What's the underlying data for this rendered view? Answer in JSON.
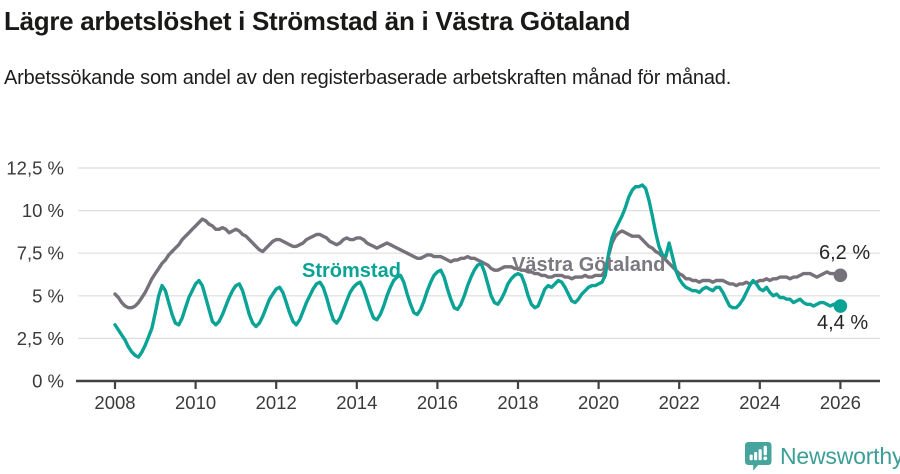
{
  "title": "Lägre arbetslöshet i Strömstad än i Västra Götaland",
  "subtitle": "Arbetssökande som andel av den registerbaserade arbetskraften månad för månad.",
  "footer": {
    "brand": "Newsworthy",
    "brand_color": "#3d9e97",
    "logo_icon": "newsworthy-speech-bubble-barchart-icon"
  },
  "chart_data": {
    "type": "line",
    "title": "Lägre arbetslöshet i Strömstad än i Västra Götaland",
    "subtitle": "Arbetssökande som andel av den registerbaserade arbetskraften månad för månad.",
    "x_unit": "month",
    "x_start": "2008-01",
    "x_end": "2026-01",
    "xlim": [
      2008,
      2026
    ],
    "ylim": [
      0,
      12.5
    ],
    "grid": true,
    "grid_color": "#dedede",
    "axis_color": "#414042",
    "legend_position": "inline-labels",
    "x_ticks": [
      "2008",
      "2010",
      "2012",
      "2014",
      "2016",
      "2018",
      "2020",
      "2022",
      "2024",
      "2026"
    ],
    "y_ticks": [
      {
        "label": "0 %",
        "value": 0
      },
      {
        "label": "2,5 %",
        "value": 2.5
      },
      {
        "label": "5 %",
        "value": 5
      },
      {
        "label": "7,5 %",
        "value": 7.5
      },
      {
        "label": "10 %",
        "value": 10
      },
      {
        "label": "12,5 %",
        "value": 12.5
      }
    ],
    "series": [
      {
        "id": "vastra-gotaland",
        "name": "Västra Götaland",
        "color": "#76717a",
        "end_label": "6,2 %",
        "end_value": 6.2,
        "values": [
          5.1,
          4.9,
          4.6,
          4.4,
          4.3,
          4.3,
          4.4,
          4.6,
          4.9,
          5.2,
          5.6,
          6.0,
          6.3,
          6.6,
          6.9,
          7.1,
          7.4,
          7.6,
          7.8,
          8.0,
          8.3,
          8.5,
          8.7,
          8.9,
          9.1,
          9.3,
          9.5,
          9.4,
          9.2,
          9.1,
          8.9,
          8.9,
          9.0,
          8.9,
          8.7,
          8.8,
          8.9,
          8.8,
          8.6,
          8.5,
          8.3,
          8.1,
          7.9,
          7.7,
          7.6,
          7.8,
          8.0,
          8.2,
          8.3,
          8.3,
          8.2,
          8.1,
          8.0,
          7.9,
          7.9,
          8.0,
          8.1,
          8.3,
          8.4,
          8.5,
          8.6,
          8.6,
          8.5,
          8.4,
          8.2,
          8.1,
          8.0,
          8.1,
          8.3,
          8.4,
          8.3,
          8.3,
          8.4,
          8.4,
          8.3,
          8.1,
          8.0,
          7.9,
          7.8,
          7.9,
          8.0,
          8.1,
          8.0,
          7.9,
          7.8,
          7.7,
          7.6,
          7.5,
          7.4,
          7.3,
          7.2,
          7.2,
          7.3,
          7.4,
          7.4,
          7.3,
          7.3,
          7.3,
          7.2,
          7.1,
          7.0,
          7.1,
          7.1,
          7.2,
          7.2,
          7.3,
          7.2,
          7.2,
          7.1,
          7.0,
          6.9,
          6.8,
          6.6,
          6.5,
          6.5,
          6.6,
          6.7,
          6.7,
          6.7,
          6.6,
          6.6,
          6.5,
          6.5,
          6.4,
          6.4,
          6.3,
          6.3,
          6.2,
          6.2,
          6.1,
          6.1,
          6.2,
          6.2,
          6.2,
          6.1,
          6.1,
          6.0,
          6.1,
          6.1,
          6.1,
          6.2,
          6.1,
          6.1,
          6.2,
          6.2,
          6.2,
          6.5,
          7.4,
          8.1,
          8.5,
          8.7,
          8.8,
          8.7,
          8.6,
          8.5,
          8.5,
          8.5,
          8.3,
          8.1,
          7.9,
          7.8,
          7.6,
          7.5,
          7.3,
          7.1,
          6.9,
          6.7,
          6.5,
          6.3,
          6.2,
          6.0,
          6.0,
          5.9,
          5.9,
          5.8,
          5.9,
          5.9,
          5.9,
          5.8,
          5.9,
          5.9,
          5.9,
          5.8,
          5.7,
          5.7,
          5.6,
          5.7,
          5.7,
          5.8,
          5.7,
          5.8,
          5.8,
          5.9,
          5.9,
          6.0,
          5.9,
          6.0,
          6.0,
          6.1,
          6.1,
          6.1,
          6.0,
          6.1,
          6.1,
          6.2,
          6.3,
          6.3,
          6.3,
          6.2,
          6.1,
          6.2,
          6.3,
          6.4,
          6.3,
          6.3,
          6.2,
          6.2
        ]
      },
      {
        "id": "stromstad",
        "name": "Strömstad",
        "color": "#0ba396",
        "end_label": "4,4 %",
        "end_value": 4.4,
        "values": [
          3.3,
          3.0,
          2.7,
          2.4,
          2.0,
          1.7,
          1.5,
          1.4,
          1.7,
          2.1,
          2.6,
          3.1,
          4.0,
          5.0,
          5.6,
          5.3,
          4.6,
          3.9,
          3.4,
          3.3,
          3.7,
          4.3,
          4.9,
          5.3,
          5.7,
          5.9,
          5.6,
          4.9,
          4.2,
          3.5,
          3.3,
          3.5,
          3.9,
          4.4,
          4.9,
          5.3,
          5.6,
          5.7,
          5.3,
          4.6,
          3.9,
          3.4,
          3.2,
          3.4,
          3.8,
          4.3,
          4.8,
          5.1,
          5.4,
          5.5,
          5.2,
          4.6,
          4.0,
          3.5,
          3.3,
          3.6,
          4.1,
          4.6,
          5.0,
          5.4,
          5.7,
          5.8,
          5.5,
          4.9,
          4.2,
          3.6,
          3.4,
          3.7,
          4.2,
          4.7,
          5.2,
          5.5,
          5.7,
          5.8,
          5.4,
          4.8,
          4.2,
          3.7,
          3.6,
          3.9,
          4.4,
          5.0,
          5.5,
          5.9,
          6.1,
          6.2,
          5.8,
          5.1,
          4.5,
          4.0,
          3.9,
          4.2,
          4.7,
          5.3,
          5.8,
          6.2,
          6.4,
          6.5,
          6.1,
          5.4,
          4.8,
          4.3,
          4.2,
          4.5,
          5.0,
          5.6,
          6.1,
          6.5,
          6.8,
          6.9,
          6.4,
          5.7,
          5.0,
          4.6,
          4.5,
          4.8,
          5.2,
          5.7,
          6.0,
          6.2,
          6.3,
          6.2,
          5.7,
          5.0,
          4.5,
          4.3,
          4.4,
          4.9,
          5.4,
          5.6,
          5.5,
          5.7,
          5.9,
          5.8,
          5.5,
          5.1,
          4.7,
          4.6,
          4.8,
          5.1,
          5.3,
          5.5,
          5.6,
          5.6,
          5.7,
          5.8,
          6.2,
          7.5,
          8.4,
          8.9,
          9.3,
          9.7,
          10.2,
          10.8,
          11.2,
          11.4,
          11.4,
          11.5,
          11.3,
          10.6,
          9.7,
          8.7,
          7.9,
          7.4,
          7.3,
          8.1,
          7.3,
          6.5,
          6.0,
          5.7,
          5.5,
          5.4,
          5.3,
          5.3,
          5.2,
          5.4,
          5.5,
          5.4,
          5.3,
          5.5,
          5.5,
          5.2,
          4.8,
          4.4,
          4.3,
          4.3,
          4.5,
          4.8,
          5.2,
          5.6,
          5.9,
          5.7,
          5.4,
          5.3,
          5.5,
          5.2,
          5.0,
          5.1,
          4.9,
          4.9,
          4.8,
          4.8,
          4.6,
          4.7,
          4.8,
          4.6,
          4.5,
          4.5,
          4.4,
          4.5,
          4.6,
          4.6,
          4.5,
          4.4,
          4.5,
          4.4,
          4.4
        ]
      }
    ]
  }
}
